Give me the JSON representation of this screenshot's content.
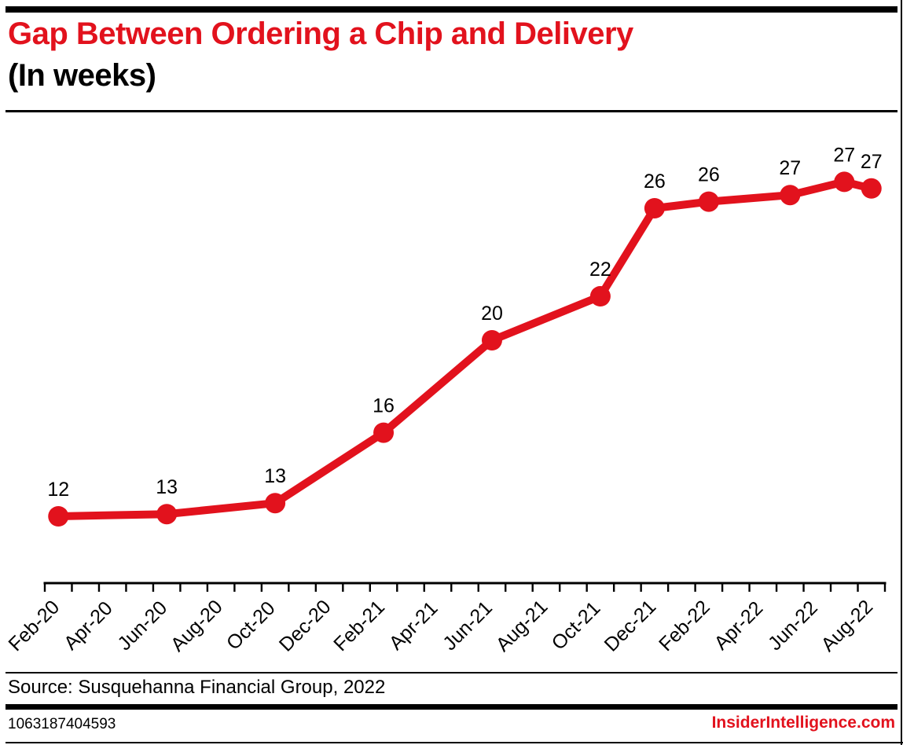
{
  "header": {
    "title": "Gap Between Ordering a Chip and Delivery",
    "subtitle": "(In weeks)"
  },
  "chart_data": {
    "type": "line",
    "title": "Gap Between Ordering a Chip and Delivery",
    "subtitle": "(In weeks)",
    "units": "weeks",
    "line_color": "#e2121d",
    "marker": "circle",
    "grid": false,
    "legend": null,
    "y_axis": {
      "visible": false,
      "implied_range": [
        9,
        32
      ]
    },
    "x_axis": {
      "months_total": 31,
      "tick_every_months": 1,
      "label_every_months": 2,
      "tick_labels": [
        "Feb-20",
        "Apr-20",
        "Jun-20",
        "Aug-20",
        "Oct-20",
        "Dec-20",
        "Feb-21",
        "Apr-21",
        "Jun-21",
        "Aug-21",
        "Oct-21",
        "Dec-21",
        "Feb-22",
        "Apr-22",
        "Jun-22",
        "Aug-22"
      ]
    },
    "points": [
      {
        "date": "Feb-20",
        "month_index": 0.5,
        "label": "12",
        "value": 12,
        "plot_value": 12.0
      },
      {
        "date": "Jun-20",
        "month_index": 4.5,
        "label": "13",
        "value": 13,
        "plot_value": 12.1
      },
      {
        "date": "Oct-20",
        "month_index": 8.5,
        "label": "13",
        "value": 13,
        "plot_value": 12.6
      },
      {
        "date": "Feb-21",
        "month_index": 12.5,
        "label": "16",
        "value": 16,
        "plot_value": 15.8
      },
      {
        "date": "Jun-21",
        "month_index": 16.5,
        "label": "20",
        "value": 20,
        "plot_value": 20.0
      },
      {
        "date": "Oct-21",
        "month_index": 20.5,
        "label": "22",
        "value": 22,
        "plot_value": 22.0
      },
      {
        "date": "Dec-21",
        "month_index": 22.5,
        "label": "26",
        "value": 26,
        "plot_value": 26.0
      },
      {
        "date": "Feb-22",
        "month_index": 24.5,
        "label": "26",
        "value": 26,
        "plot_value": 26.3
      },
      {
        "date": "May-22",
        "month_index": 27.5,
        "label": "27",
        "value": 27,
        "plot_value": 26.6
      },
      {
        "date": "Jul-22",
        "month_index": 29.5,
        "label": "27",
        "value": 27,
        "plot_value": 27.2
      },
      {
        "date": "Aug-22",
        "month_index": 30.5,
        "label": "27",
        "value": 27,
        "plot_value": 26.9
      }
    ]
  },
  "footer": {
    "source": "Source: Susquehanna Financial Group, 2022",
    "id_number": "1063187404593",
    "website": "InsiderIntelligence.com"
  },
  "colors": {
    "accent_red": "#e2121d",
    "text": "#000000",
    "background": "#ffffff"
  }
}
